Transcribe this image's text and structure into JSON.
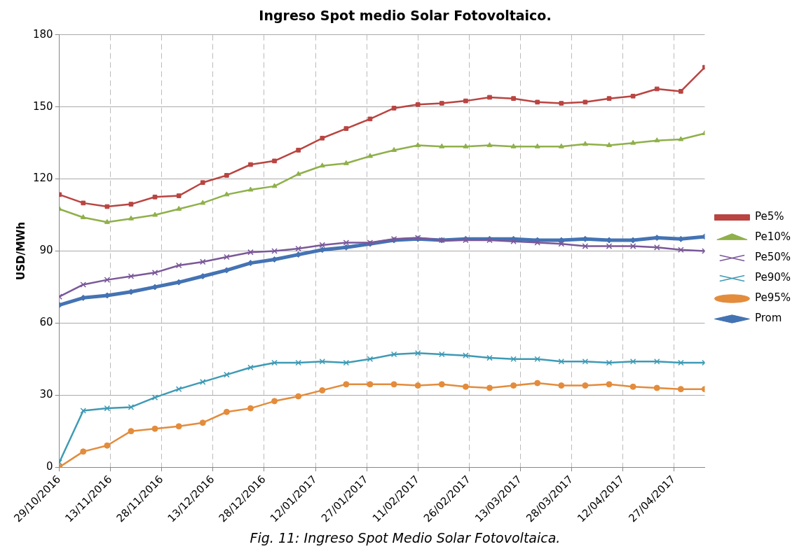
{
  "chart_data": {
    "type": "line",
    "title": "Ingreso Spot medio Solar Fotovoltaico.",
    "ylabel": "USD/MWh",
    "annotations": [
      "Fig. 11: Ingreso Spot Medio Solar Fotovoltaica."
    ],
    "x": [
      "2016-10-29",
      "2016-11-05",
      "2016-11-12",
      "2016-11-19",
      "2016-11-26",
      "2016-12-03",
      "2016-12-10",
      "2016-12-17",
      "2016-12-24",
      "2016-12-31",
      "2017-01-07",
      "2017-01-14",
      "2017-01-21",
      "2017-01-28",
      "2017-02-04",
      "2017-02-11",
      "2017-02-18",
      "2017-02-25",
      "2017-03-04",
      "2017-03-11",
      "2017-03-18",
      "2017-03-25",
      "2017-04-01",
      "2017-04-08",
      "2017-04-15",
      "2017-04-22",
      "2017-04-29",
      "2017-05-06"
    ],
    "series": [
      {
        "name": "Prom",
        "color": "#4473b3",
        "marker": "diamond",
        "values": [
          67.5,
          70.5,
          71.5,
          73,
          75,
          77,
          79.5,
          82,
          85,
          86.5,
          88.5,
          90.5,
          91.5,
          93,
          94.5,
          95,
          94.5,
          95,
          95,
          95,
          94.5,
          94.5,
          95,
          94.5,
          94.5,
          95.5,
          95,
          96
        ]
      },
      {
        "name": "Pe5%",
        "color": "#b94441",
        "marker": "square",
        "values": [
          113.5,
          110,
          108.5,
          109.5,
          112.5,
          113,
          118.5,
          121.5,
          126,
          127.5,
          132,
          137,
          141,
          145,
          149.5,
          151,
          151.5,
          152.5,
          154,
          153.5,
          152,
          151.5,
          152,
          153.5,
          154.5,
          157.5,
          156.5,
          166.5
        ]
      },
      {
        "name": "Pe10%",
        "color": "#8fb04a",
        "marker": "triangle",
        "values": [
          107.5,
          104,
          102,
          103.5,
          105,
          107.5,
          110,
          113.5,
          115.5,
          117,
          122,
          125.5,
          126.5,
          129.5,
          132,
          134,
          133.5,
          133.5,
          134,
          133.5,
          133.5,
          133.5,
          134.5,
          134,
          135,
          136,
          136.5,
          139
        ]
      },
      {
        "name": "Pe50%",
        "color": "#7a5899",
        "marker": "cross",
        "values": [
          71,
          76,
          78,
          79.5,
          81,
          84,
          85.5,
          87.5,
          89.5,
          90,
          91,
          92.5,
          93.5,
          93.5,
          95,
          95.5,
          94.5,
          94.5,
          94.5,
          94,
          93.5,
          93,
          92,
          92,
          92,
          91.5,
          90.5,
          90
        ]
      },
      {
        "name": "Pe90%",
        "color": "#3e9ab5",
        "marker": "cross",
        "values": [
          2,
          23.5,
          24.5,
          25,
          29,
          32.5,
          35.5,
          38.5,
          41.5,
          43.5,
          43.5,
          44,
          43.5,
          45,
          47,
          47.5,
          47,
          46.5,
          45.5,
          45,
          45,
          44,
          44,
          43.5,
          44,
          44,
          43.5,
          43.5
        ]
      },
      {
        "name": "Pe95%",
        "color": "#e38c3c",
        "marker": "circle",
        "values": [
          0,
          6.5,
          9,
          15,
          16,
          17,
          18.5,
          23,
          24.5,
          27.5,
          29.5,
          32,
          34.5,
          34.5,
          34.5,
          34,
          34.5,
          33.5,
          33,
          34,
          35,
          34,
          34,
          34.5,
          33.5,
          33,
          32.5,
          32.5
        ]
      }
    ],
    "xlim": [
      "2016-10-29",
      "2017-05-06"
    ],
    "xticks": [
      {
        "value": "2016-10-29",
        "label": "29/10/2016"
      },
      {
        "value": "2016-11-13",
        "label": "13/11/2016"
      },
      {
        "value": "2016-11-28",
        "label": "28/11/2016"
      },
      {
        "value": "2016-12-13",
        "label": "13/12/2016"
      },
      {
        "value": "2016-12-28",
        "label": "28/12/2016"
      },
      {
        "value": "2017-01-12",
        "label": "12/01/2017"
      },
      {
        "value": "2017-01-27",
        "label": "27/01/2017"
      },
      {
        "value": "2017-02-11",
        "label": "11/02/2017"
      },
      {
        "value": "2017-02-26",
        "label": "26/02/2017"
      },
      {
        "value": "2017-03-13",
        "label": "13/03/2017"
      },
      {
        "value": "2017-03-28",
        "label": "28/03/2017"
      },
      {
        "value": "2017-04-12",
        "label": "12/04/2017"
      },
      {
        "value": "2017-04-27",
        "label": "27/04/2017"
      }
    ],
    "ylim": [
      0,
      180
    ],
    "yticks": [
      0,
      30,
      60,
      90,
      120,
      150,
      180
    ],
    "grid": true,
    "legend": "right",
    "line_style": "solid"
  }
}
